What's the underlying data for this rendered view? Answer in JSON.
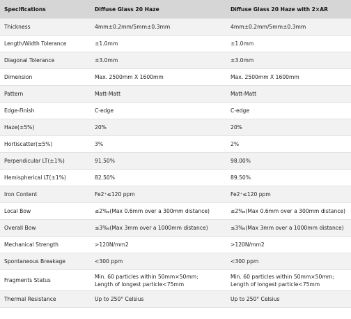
{
  "table": {
    "header": [
      "Specifications",
      "Diffuse Glass 20 Haze",
      "Diffuse Glass 20 Haze with 2×AR"
    ],
    "rows": [
      [
        "Thickness",
        "4mm±0.2mm/5mm±0.3mm",
        "4mm±0.2mm/5mm±0.3mm"
      ],
      [
        "Length/Width Tolerance",
        "±1.0mm",
        "±1.0mm"
      ],
      [
        "Diagonal Tolerance",
        "±3.0mm",
        "±3.0mm"
      ],
      [
        "Dimension",
        "Max. 2500mm X 1600mm",
        "Max. 2500mm X 1600mm"
      ],
      [
        "Pattern",
        "Matt-Matt",
        "Matt-Matt"
      ],
      [
        "Edge-Finish",
        "C-edge",
        "C-edge"
      ],
      [
        "Haze(±5%)",
        "20%",
        "20%"
      ],
      [
        "Hortiscatter(±5%)",
        "3%",
        "2%"
      ],
      [
        "Perpendicular LT(±1%)",
        "91.50%",
        "98.00%"
      ],
      [
        "Hemispherical LT(±1%)",
        "82.50%",
        "89.50%"
      ],
      [
        "Iron Content",
        "Fe2⁺≤120 ppm",
        "Fe2⁺≤120 ppm"
      ],
      [
        "Local Bow",
        "≤2‰(Max 0.6mm over a 300mm distance)",
        "≤2‰(Max 0.6mm over a 300mm distance)"
      ],
      [
        "Overall Bow",
        "≤3‰(Max 3mm over a 1000mm distance)",
        "≤3‰(Max 3mm over a 1000mm distance)"
      ],
      [
        "Mechanical Strength",
        ">120N/mm2",
        ">120N/mm2"
      ],
      [
        "Spontaneous Breakage",
        "<300 ppm",
        "<300 ppm"
      ],
      [
        "Fragments Status",
        [
          "Min. 60 particles within 50mm×50mm;",
          "Length of longest particle<75mm"
        ],
        [
          "Min. 60 particles within 50mm×50mm;",
          "Length of longest particle<75mm"
        ]
      ],
      [
        "Thermal Resistance",
        "Up to 250° Celsius",
        "Up to 250° Celsius"
      ]
    ]
  }
}
